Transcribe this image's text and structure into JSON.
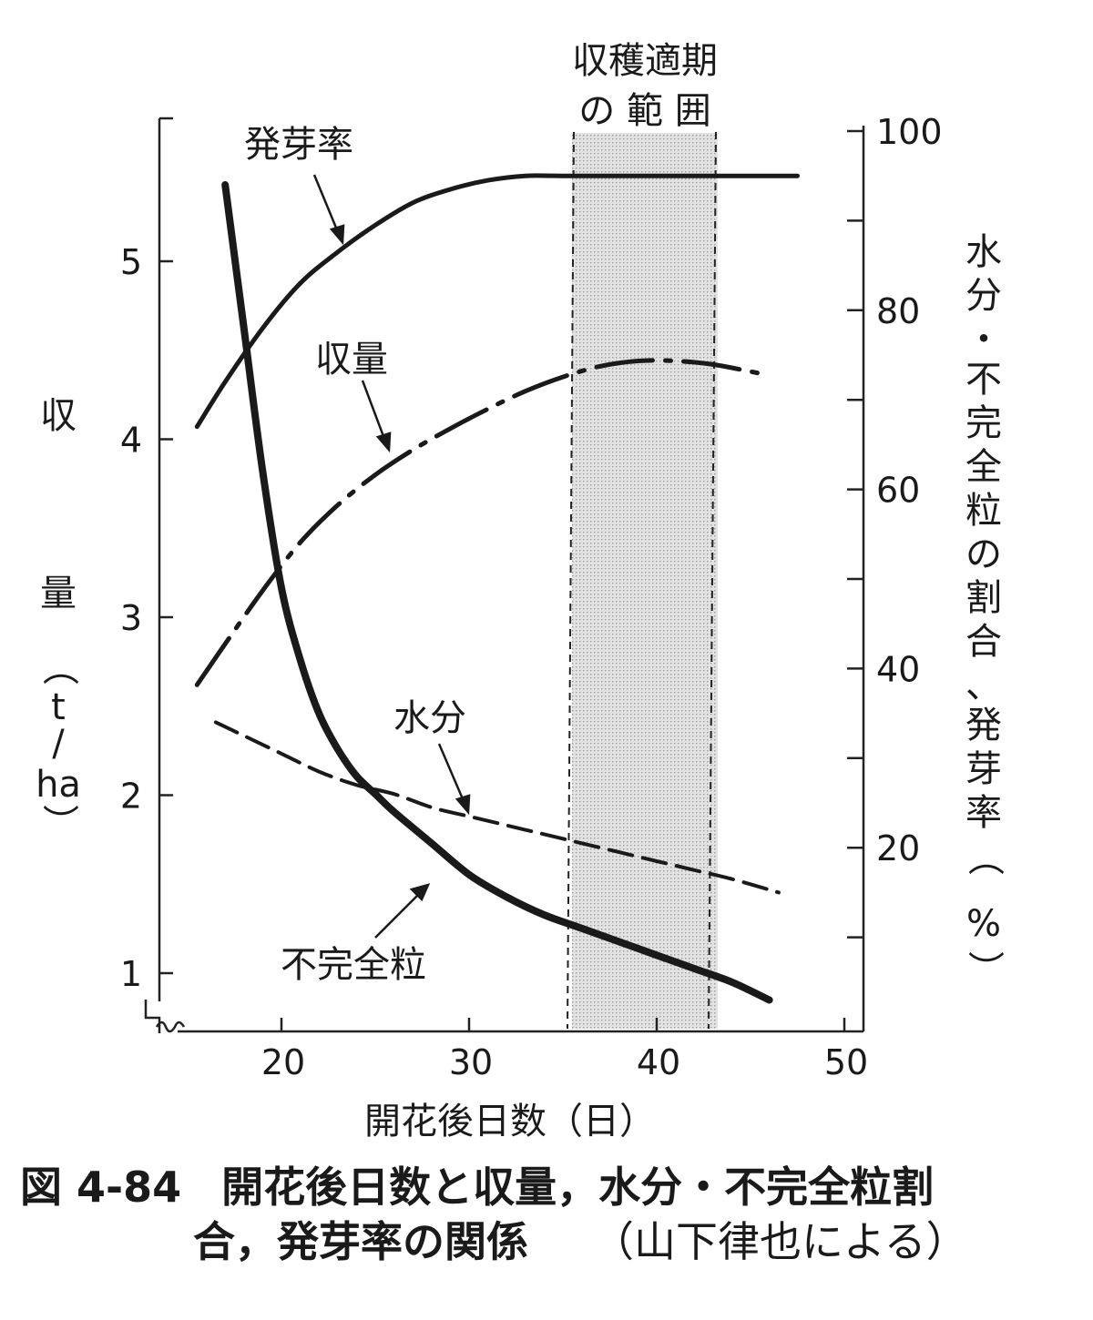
{
  "chart_data": {
    "type": "line",
    "xlabel": "開花後日数（日）",
    "ylabel_left": "収量（t/ha）",
    "ylabel_right": "水分・不完全粒の割合、発芽率（%）",
    "x_ticks": [
      20,
      30,
      40,
      50
    ],
    "xlim": [
      15,
      50
    ],
    "y_left_ticks": [
      1,
      2,
      3,
      4,
      5
    ],
    "y_left_range": [
      1,
      5.8
    ],
    "y_right_ticks": [
      20,
      40,
      60,
      80,
      100
    ],
    "y_right_range": [
      0,
      100
    ],
    "shaded_region": {
      "label_line1": "収穫適期",
      "label_line2": "の 範 囲",
      "x_start": 35.5,
      "x_end": 43
    },
    "grid": false,
    "series": [
      {
        "name": "発芽率",
        "axis": "right",
        "style": "solid",
        "x": [
          15.5,
          17,
          19,
          21,
          23,
          25,
          27,
          29,
          31,
          33,
          35,
          40,
          45,
          47.5
        ],
        "y": [
          67,
          72,
          78,
          83,
          86.5,
          89.5,
          92,
          93.5,
          94.5,
          95,
          95,
          95,
          95,
          95
        ]
      },
      {
        "name": "収量",
        "axis": "left",
        "style": "dash-dot",
        "x": [
          15.5,
          17,
          19,
          21,
          23,
          25,
          27,
          29,
          31,
          33,
          35,
          37,
          39,
          41,
          43,
          45.5
        ],
        "y": [
          2.62,
          2.85,
          3.15,
          3.42,
          3.63,
          3.8,
          3.94,
          4.06,
          4.17,
          4.27,
          4.35,
          4.41,
          4.44,
          4.44,
          4.42,
          4.37
        ]
      },
      {
        "name": "水分",
        "axis": "right",
        "style": "dashed",
        "x": [
          16.5,
          18,
          20,
          22,
          24,
          26,
          28,
          30,
          32,
          34,
          36,
          38,
          40,
          42,
          44,
          46.5
        ],
        "y": [
          34,
          32.5,
          30.5,
          28.5,
          27,
          26,
          24.5,
          23.5,
          22.5,
          21.5,
          20.5,
          19.5,
          18.5,
          17.5,
          16.5,
          15
        ]
      },
      {
        "name": "不完全粒",
        "axis": "right",
        "style": "solid-thick",
        "x": [
          17,
          18,
          19,
          20,
          21,
          22,
          23,
          24,
          25,
          26,
          28,
          30,
          32,
          34,
          36,
          38,
          40,
          42,
          44,
          46
        ],
        "y": [
          94,
          78,
          62,
          49,
          41,
          35,
          31,
          28,
          26,
          24,
          20.5,
          17,
          14.5,
          12.5,
          11,
          9.5,
          8,
          6.5,
          5,
          3
        ]
      }
    ],
    "annotations": [
      {
        "text": "発芽率",
        "series": "発芽率"
      },
      {
        "text": "収量",
        "series": "収量"
      },
      {
        "text": "水分",
        "series": "水分"
      },
      {
        "text": "不完全粒",
        "series": "不完全粒"
      }
    ]
  },
  "caption": {
    "number": "図 4-84",
    "line1": "開花後日数と収量，水分・不完全粒割",
    "line2": "合，発芽率の関係",
    "credit": "（山下律也による）"
  }
}
